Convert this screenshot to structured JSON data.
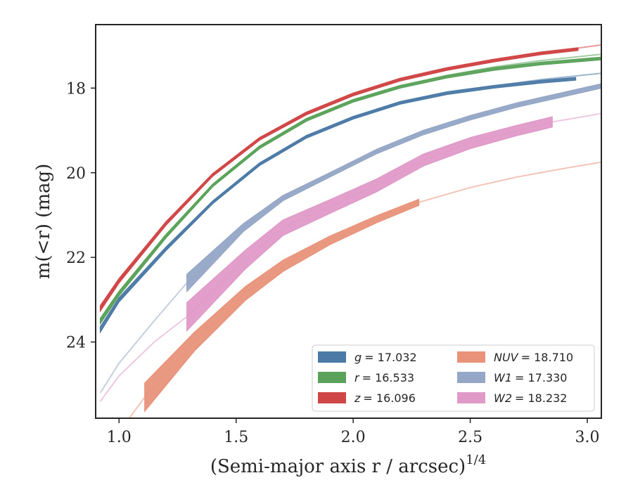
{
  "chart_data": {
    "type": "line",
    "xlabel": "(Semi-major axis r / arcsec)",
    "xlabel_superscript": "1/4",
    "ylabel": "m(<r) (mag)",
    "xlim": [
      0.9,
      3.06
    ],
    "ylim": [
      25.8,
      16.5
    ],
    "y_inverted": true,
    "x_ticks": [
      1.0,
      1.5,
      2.0,
      2.5,
      3.0
    ],
    "x_tick_labels": [
      "1.0",
      "1.5",
      "2.0",
      "2.5",
      "3.0"
    ],
    "y_ticks": [
      18,
      20,
      22,
      24
    ],
    "y_tick_labels": [
      "18",
      "20",
      "22",
      "24"
    ],
    "grid": false,
    "legend_placement": "lower-right",
    "series": [
      {
        "name": "g = 17.032",
        "band_label": "g",
        "value_label": "= 17.032",
        "color": "#4c7aa6",
        "extrap_x": [
          0.92,
          1.0,
          1.2,
          1.4,
          1.6,
          1.8,
          2.0,
          2.2,
          2.4,
          2.6,
          2.8,
          3.06
        ],
        "extrap_y": [
          23.7,
          23.0,
          21.8,
          20.7,
          19.8,
          19.15,
          18.7,
          18.35,
          18.1,
          17.95,
          17.8,
          17.65
        ],
        "meas_x": [
          0.92,
          1.0,
          1.2,
          1.4,
          1.6,
          1.8,
          2.0,
          2.2,
          2.4,
          2.6,
          2.8,
          2.95
        ],
        "meas_y": [
          23.7,
          23.0,
          21.8,
          20.7,
          19.8,
          19.15,
          18.7,
          18.35,
          18.12,
          17.97,
          17.85,
          17.78
        ],
        "meas_err": [
          0.06,
          0.05,
          0.04,
          0.03,
          0.03,
          0.03,
          0.03,
          0.03,
          0.03,
          0.03,
          0.03,
          0.03
        ]
      },
      {
        "name": "r = 16.533",
        "band_label": "r",
        "value_label": "= 16.533",
        "color": "#5aa25a",
        "extrap_x": [
          0.92,
          1.0,
          1.2,
          1.4,
          1.6,
          1.8,
          2.0,
          2.2,
          2.4,
          2.6,
          2.8,
          3.06
        ],
        "extrap_y": [
          23.5,
          22.85,
          21.5,
          20.3,
          19.4,
          18.75,
          18.3,
          17.95,
          17.7,
          17.5,
          17.35,
          17.2
        ],
        "meas_x": [
          0.92,
          1.0,
          1.2,
          1.4,
          1.6,
          1.8,
          2.0,
          2.2,
          2.4,
          2.6,
          2.8,
          3.06
        ],
        "meas_y": [
          23.5,
          22.85,
          21.5,
          20.3,
          19.4,
          18.75,
          18.3,
          17.97,
          17.73,
          17.55,
          17.42,
          17.3
        ],
        "meas_err": [
          0.06,
          0.05,
          0.04,
          0.03,
          0.03,
          0.03,
          0.03,
          0.03,
          0.03,
          0.03,
          0.03,
          0.03
        ]
      },
      {
        "name": "z = 16.096",
        "band_label": "z",
        "value_label": "= 16.096",
        "color": "#d04545",
        "extrap_x": [
          0.92,
          1.0,
          1.2,
          1.4,
          1.6,
          1.8,
          2.0,
          2.2,
          2.4,
          2.6,
          2.8,
          3.06
        ],
        "extrap_y": [
          23.2,
          22.55,
          21.2,
          20.05,
          19.2,
          18.6,
          18.15,
          17.8,
          17.55,
          17.35,
          17.18,
          16.98
        ],
        "meas_x": [
          0.92,
          1.0,
          1.2,
          1.4,
          1.6,
          1.8,
          2.0,
          2.2,
          2.4,
          2.6,
          2.8,
          2.96
        ],
        "meas_y": [
          23.2,
          22.55,
          21.2,
          20.05,
          19.2,
          18.6,
          18.15,
          17.8,
          17.55,
          17.35,
          17.18,
          17.08
        ],
        "meas_err": [
          0.06,
          0.05,
          0.04,
          0.03,
          0.03,
          0.03,
          0.03,
          0.03,
          0.03,
          0.03,
          0.03,
          0.03
        ]
      },
      {
        "name": "NUV = 18.710",
        "band_label": "NUV",
        "value_label": "= 18.710",
        "color": "#e8937a",
        "extrap_x": [
          1.03,
          1.11,
          1.32,
          1.54,
          1.7,
          1.9,
          2.1,
          2.28,
          2.5,
          2.7,
          2.9,
          3.06
        ],
        "extrap_y": [
          25.9,
          25.3,
          24.0,
          22.85,
          22.2,
          21.6,
          21.1,
          20.7,
          20.35,
          20.1,
          19.9,
          19.75
        ],
        "meas_x": [
          1.11,
          1.32,
          1.54,
          1.7,
          1.9,
          2.1,
          2.28
        ],
        "meas_y": [
          25.3,
          24.0,
          22.85,
          22.2,
          21.6,
          21.1,
          20.7
        ],
        "meas_err": [
          0.33,
          0.22,
          0.16,
          0.13,
          0.1,
          0.08,
          0.07
        ]
      },
      {
        "name": "W1 = 17.330",
        "band_label": "W1",
        "value_label": "= 17.330",
        "color": "#95a6c6",
        "extrap_x": [
          0.92,
          1.0,
          1.15,
          1.29,
          1.53,
          1.7,
          1.9,
          2.1,
          2.3,
          2.5,
          2.7,
          2.9,
          3.06
        ],
        "extrap_y": [
          25.2,
          24.5,
          23.5,
          22.6,
          21.3,
          20.6,
          20.05,
          19.5,
          19.05,
          18.7,
          18.4,
          18.15,
          17.95
        ],
        "meas_x": [
          1.29,
          1.53,
          1.7,
          1.9,
          2.1,
          2.3,
          2.5,
          2.7,
          2.9,
          3.06
        ],
        "meas_y": [
          22.6,
          21.3,
          20.6,
          20.05,
          19.5,
          19.05,
          18.7,
          18.4,
          18.15,
          17.95
        ],
        "meas_err": [
          0.2,
          0.09,
          0.06,
          0.05,
          0.05,
          0.05,
          0.05,
          0.05,
          0.05,
          0.05
        ]
      },
      {
        "name": "W2 = 18.232",
        "band_label": "W2",
        "value_label": "= 18.232",
        "color": "#e09ac8",
        "extrap_x": [
          0.92,
          1.0,
          1.15,
          1.29,
          1.54,
          1.7,
          1.9,
          2.1,
          2.3,
          2.5,
          2.7,
          2.85,
          3.06
        ],
        "extrap_y": [
          25.4,
          24.8,
          24.0,
          23.4,
          22.05,
          21.3,
          20.8,
          20.3,
          19.7,
          19.3,
          19.0,
          18.8,
          18.6
        ],
        "meas_x": [
          1.29,
          1.54,
          1.7,
          1.9,
          2.1,
          2.3,
          2.5,
          2.7,
          2.85
        ],
        "meas_y": [
          23.4,
          22.05,
          21.3,
          20.8,
          20.3,
          19.7,
          19.3,
          19.0,
          18.8
        ],
        "meas_err": [
          0.33,
          0.22,
          0.18,
          0.16,
          0.15,
          0.14,
          0.13,
          0.12,
          0.12
        ]
      }
    ]
  }
}
